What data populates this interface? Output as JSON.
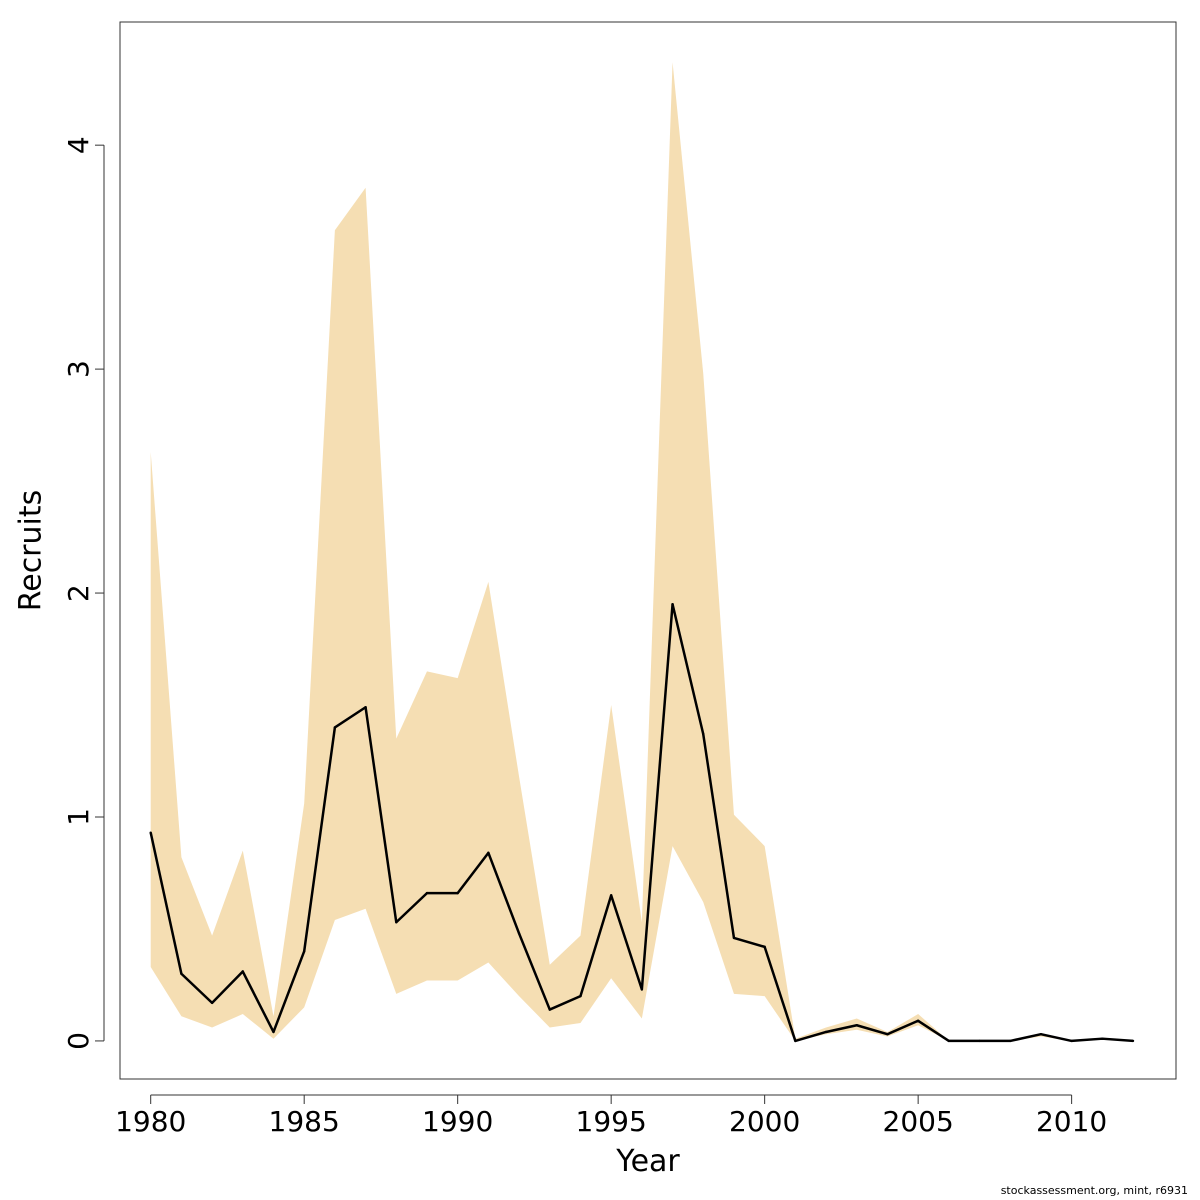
{
  "chart_data": {
    "type": "line",
    "title": "",
    "xlabel": "Year",
    "ylabel": "Recruits",
    "xlim": [
      1979,
      2013.4
    ],
    "ylim": [
      -0.17,
      4.55
    ],
    "x_ticks": [
      1980,
      1985,
      1990,
      1995,
      2000,
      2005,
      2010
    ],
    "y_ticks": [
      0,
      1,
      2,
      3,
      4
    ],
    "grid": false,
    "legend": "none",
    "x": [
      1980,
      1981,
      1982,
      1983,
      1984,
      1985,
      1986,
      1987,
      1988,
      1989,
      1990,
      1991,
      1992,
      1993,
      1994,
      1995,
      1996,
      1997,
      1998,
      1999,
      2000,
      2001,
      2002,
      2003,
      2004,
      2005,
      2006,
      2007,
      2008,
      2009,
      2010,
      2011,
      2012
    ],
    "series": [
      {
        "values": [
          0.93,
          0.3,
          0.17,
          0.31,
          0.04,
          0.4,
          1.4,
          1.49,
          0.53,
          0.66,
          0.66,
          0.84,
          0.48,
          0.14,
          0.2,
          0.65,
          0.23,
          1.95,
          1.37,
          0.46,
          0.42,
          0.0,
          0.04,
          0.07,
          0.03,
          0.09,
          0.0,
          0.0,
          0.0,
          0.03,
          0.0,
          0.01,
          0.0
        ],
        "color": "#000000"
      }
    ],
    "band": {
      "upper": [
        2.63,
        0.82,
        0.47,
        0.85,
        0.11,
        1.06,
        3.62,
        3.81,
        1.35,
        1.65,
        1.62,
        2.05,
        1.18,
        0.34,
        0.47,
        1.5,
        0.53,
        4.37,
        2.98,
        1.01,
        0.87,
        0.01,
        0.06,
        0.1,
        0.04,
        0.12,
        0.0,
        0.0,
        0.0,
        0.03,
        0.0,
        0.01,
        0.0
      ],
      "lower": [
        0.33,
        0.11,
        0.06,
        0.12,
        0.01,
        0.15,
        0.54,
        0.59,
        0.21,
        0.27,
        0.27,
        0.35,
        0.2,
        0.06,
        0.08,
        0.28,
        0.1,
        0.87,
        0.62,
        0.21,
        0.2,
        0.0,
        0.03,
        0.05,
        0.02,
        0.07,
        0.0,
        0.0,
        0.0,
        0.02,
        0.0,
        0.01,
        0.0
      ],
      "color": "#f5deb3"
    }
  },
  "footer_text": "stockassessment.org, mint, r6931"
}
